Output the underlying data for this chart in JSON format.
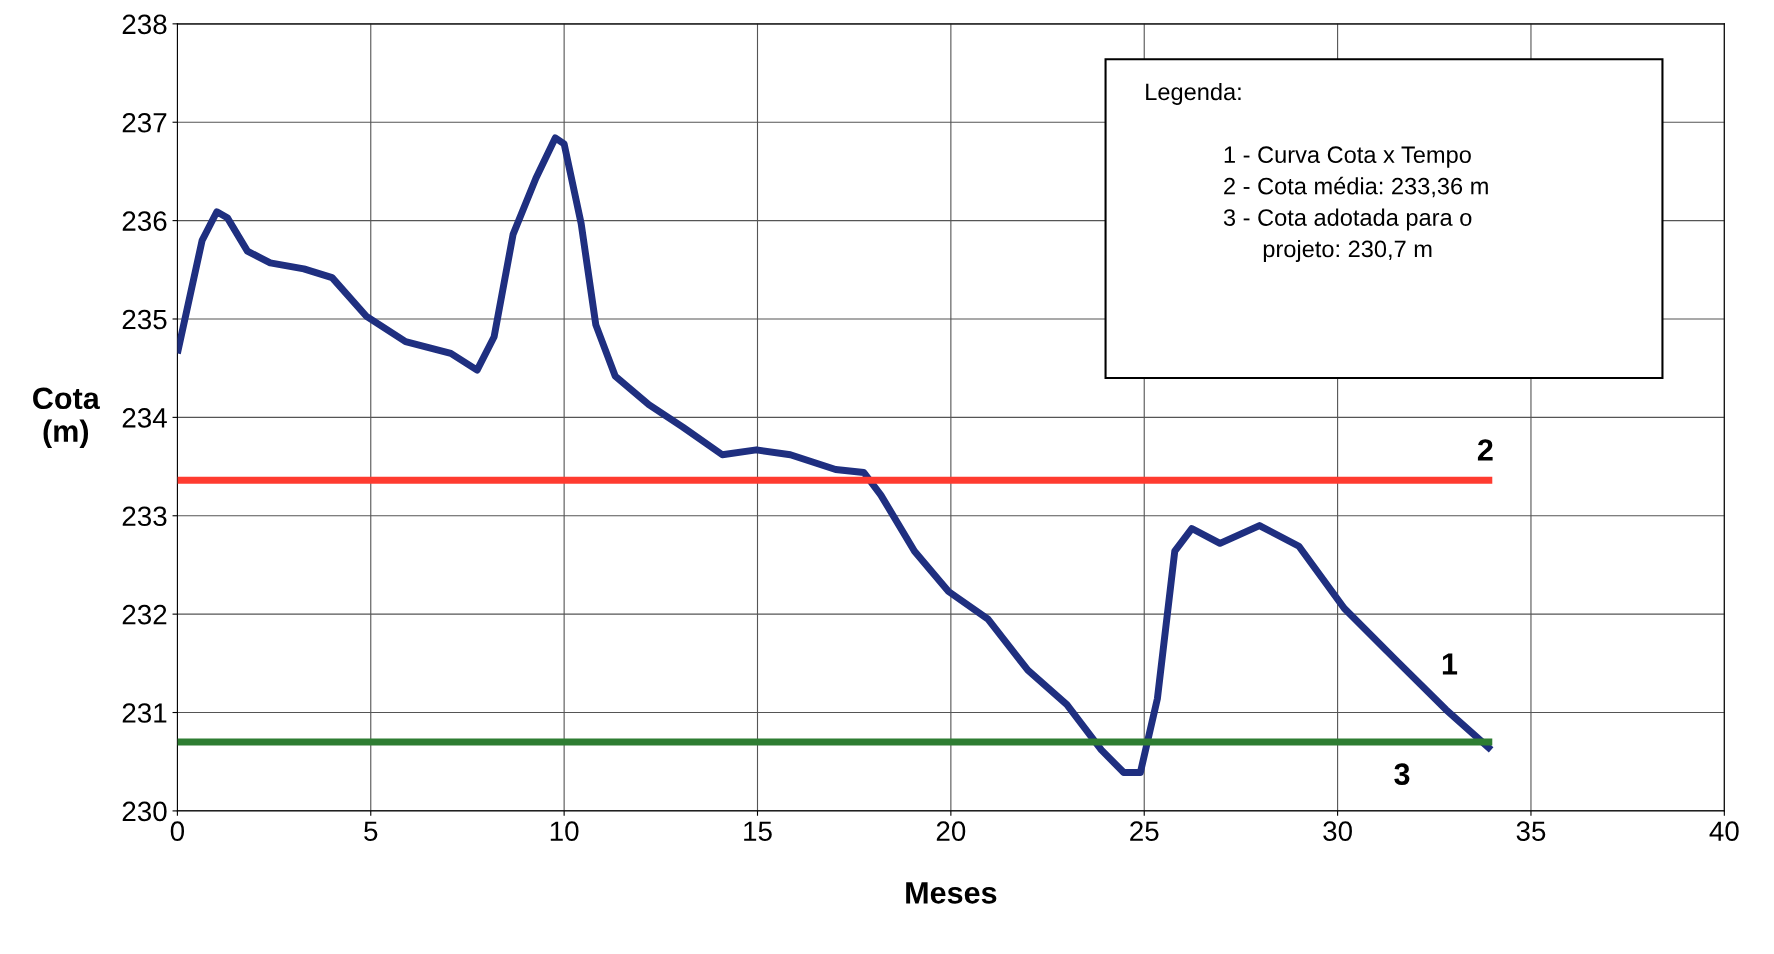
{
  "chart_data": {
    "type": "line",
    "xlabel": "Meses",
    "ylabel": "Cota\n(m)",
    "xlim": [
      0,
      40
    ],
    "xticks": [
      0,
      5,
      10,
      15,
      20,
      25,
      30,
      35,
      40
    ],
    "ylim": [
      230,
      238
    ],
    "yticks": [
      230,
      231,
      232,
      233,
      234,
      235,
      236,
      237,
      238
    ],
    "grid": true,
    "marker": "none",
    "line_style": "solid",
    "series": [
      {
        "color": "#1f2f80",
        "x": [
          0,
          0.35,
          0.64,
          1.02,
          1.29,
          1.81,
          2.4,
          3.27,
          4.0,
          4.88,
          5.9,
          7.07,
          7.75,
          8.19,
          8.68,
          9.27,
          9.77,
          10.0,
          10.44,
          10.82,
          11.32,
          12.19,
          13.07,
          14.09,
          14.97,
          15.85,
          17.02,
          17.75,
          18.19,
          19.06,
          19.94,
          20.96,
          21.99,
          23.0,
          23.89,
          24.47,
          24.9,
          25.34,
          25.79,
          26.23,
          26.96,
          27.98,
          29.0,
          30.17,
          31.49,
          32.8,
          33.97
        ],
        "values": [
          234.65,
          235.28,
          235.8,
          236.09,
          236.03,
          235.69,
          235.57,
          235.51,
          235.42,
          235.03,
          234.77,
          234.65,
          234.48,
          234.82,
          235.86,
          236.43,
          236.84,
          236.78,
          235.97,
          234.94,
          234.42,
          234.13,
          233.9,
          233.62,
          233.67,
          233.62,
          233.47,
          233.44,
          233.21,
          232.64,
          232.23,
          231.95,
          231.43,
          231.08,
          230.62,
          230.39,
          230.39,
          231.14,
          232.64,
          232.87,
          232.72,
          232.9,
          232.69,
          232.06,
          231.54,
          231.03,
          230.62
        ]
      },
      {
        "color": "#ff3b30",
        "x": [
          0,
          34
        ],
        "values": [
          233.36,
          233.36
        ]
      },
      {
        "color": "#2e7d32",
        "x": [
          0,
          34
        ],
        "values": [
          230.7,
          230.7
        ]
      }
    ],
    "annotations": [
      "1",
      "2",
      "3",
      "Legenda:\n\n            1 - Curva Cota x Tempo\n            2 - Cota média: 233,36 m\n            3 - Cota adotada para o\n                  projeto: 230,7 m"
    ]
  }
}
